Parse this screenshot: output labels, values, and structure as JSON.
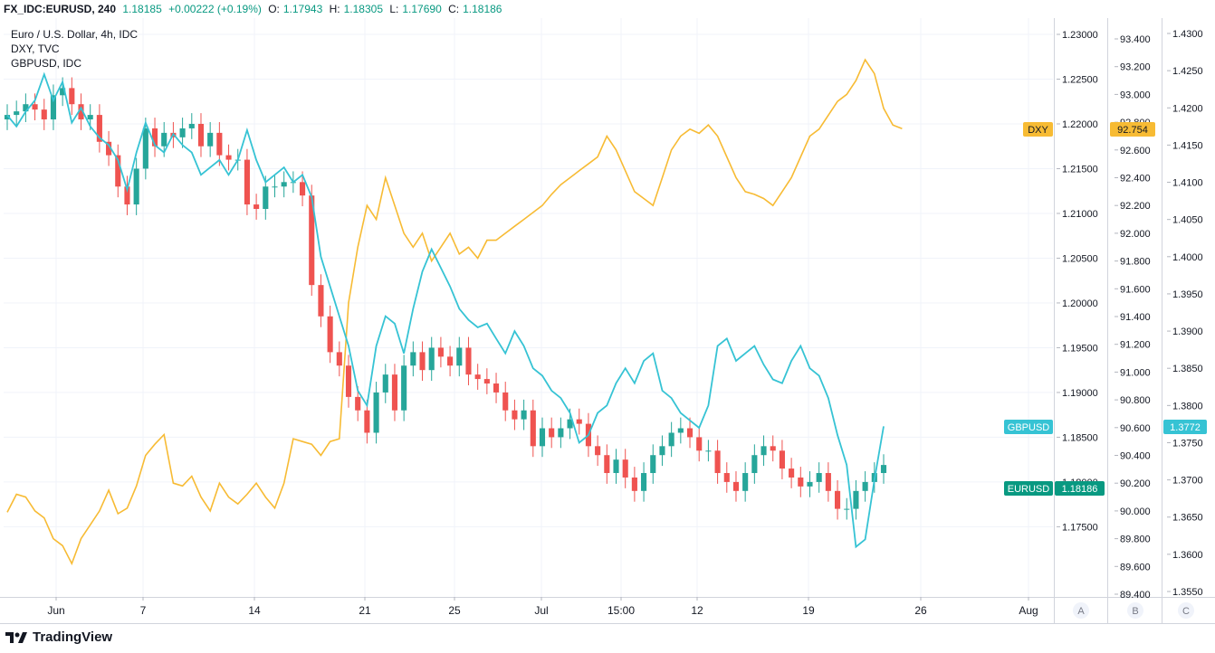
{
  "header": {
    "symbol": "FX_IDC:EURUSD, 240",
    "price": "1.18185",
    "change": "+0.00222 (+0.19%)",
    "open_label": "O:",
    "open": "1.17943",
    "high_label": "H:",
    "high": "1.18305",
    "low_label": "L:",
    "low": "1.17690",
    "close_label": "C:",
    "close": "1.18186"
  },
  "legend": {
    "series1": "Euro / U.S. Dollar, 4h, IDC",
    "series2": "DXY, TVC",
    "series3": "GBPUSD, IDC"
  },
  "brand": {
    "name": "TradingView"
  },
  "scale_buttons": [
    "A",
    "B",
    "C"
  ],
  "colors": {
    "eurusd_up": "#26a69a",
    "eurusd_down": "#ef5350",
    "dxy": "#f7bb34",
    "gbpusd": "#36c3d4",
    "eurusd_tag": "#089981"
  },
  "chart_data": {
    "type": "line",
    "x_ticks": [
      "Jun",
      "7",
      "14",
      "21",
      "25",
      "Jul",
      "15:00",
      "12",
      "19",
      "26",
      "Aug"
    ],
    "axes": {
      "eurusd": {
        "ticks": [
          "1.23000",
          "1.22500",
          "1.22000",
          "1.21500",
          "1.21000",
          "1.20500",
          "1.20000",
          "1.19500",
          "1.19000",
          "1.18500",
          "1.18000",
          "1.17500"
        ],
        "ylim": [
          1.171,
          1.23
        ]
      },
      "dxy": {
        "ticks": [
          "93.400",
          "93.200",
          "93.000",
          "92.800",
          "92.600",
          "92.400",
          "92.200",
          "92.000",
          "91.800",
          "91.600",
          "91.400",
          "91.200",
          "91.000",
          "90.800",
          "90.600",
          "90.400",
          "90.200",
          "90.000",
          "89.800",
          "89.600",
          "89.400"
        ],
        "ylim": [
          89.4,
          93.4
        ]
      },
      "gbpusd": {
        "ticks": [
          "1.4300",
          "1.4250",
          "1.4200",
          "1.4150",
          "1.4100",
          "1.4050",
          "1.4000",
          "1.3950",
          "1.3900",
          "1.3850",
          "1.3800",
          "1.3750",
          "1.3700",
          "1.3650",
          "1.3600",
          "1.3550"
        ],
        "ylim": [
          1.355,
          1.43
        ]
      }
    },
    "series": [
      {
        "name": "EURUSD",
        "kind": "close",
        "values": [
          1.221,
          1.2214,
          1.2222,
          1.2216,
          1.2205,
          1.2232,
          1.224,
          1.2222,
          1.2205,
          1.221,
          1.218,
          1.2165,
          1.213,
          1.211,
          1.215,
          1.2195,
          1.2175,
          1.219,
          1.2185,
          1.2195,
          1.22,
          1.2175,
          1.219,
          1.2165,
          1.216,
          1.216,
          1.211,
          1.2105,
          1.213,
          1.213,
          1.2135,
          1.2135,
          1.212,
          1.202,
          1.1985,
          1.1945,
          1.193,
          1.1895,
          1.188,
          1.1855,
          1.19,
          1.192,
          1.188,
          1.193,
          1.1945,
          1.1925,
          1.195,
          1.194,
          1.193,
          1.195,
          1.192,
          1.1915,
          1.191,
          1.19,
          1.188,
          1.187,
          1.188,
          1.184,
          1.186,
          1.185,
          1.186,
          1.187,
          1.1865,
          1.184,
          1.183,
          1.181,
          1.1825,
          1.1805,
          1.179,
          1.181,
          1.183,
          1.184,
          1.1855,
          1.186,
          1.185,
          1.1835,
          1.1835,
          1.181,
          1.18,
          1.179,
          1.181,
          1.183,
          1.184,
          1.1835,
          1.1815,
          1.1805,
          1.1795,
          1.18,
          1.181,
          1.179,
          1.177,
          1.177,
          1.179,
          1.18,
          1.181,
          1.1819
        ]
      },
      {
        "name": "DXY",
        "values": [
          89.99,
          90.12,
          90.1,
          90.0,
          89.95,
          89.8,
          89.75,
          89.62,
          89.8,
          89.9,
          90.0,
          90.15,
          89.98,
          90.02,
          90.18,
          90.4,
          90.48,
          90.55,
          90.2,
          90.18,
          90.25,
          90.1,
          90.0,
          90.2,
          90.1,
          90.05,
          90.12,
          90.2,
          90.1,
          90.02,
          90.2,
          90.52,
          90.5,
          90.48,
          90.4,
          90.5,
          90.52,
          91.5,
          91.9,
          92.2,
          92.1,
          92.4,
          92.2,
          92.0,
          91.9,
          92.0,
          91.8,
          91.9,
          92.0,
          91.85,
          91.9,
          91.82,
          91.95,
          91.95,
          92.0,
          92.05,
          92.1,
          92.15,
          92.2,
          92.28,
          92.35,
          92.4,
          92.45,
          92.5,
          92.55,
          92.7,
          92.6,
          92.45,
          92.3,
          92.25,
          92.2,
          92.4,
          92.6,
          92.7,
          92.75,
          92.72,
          92.78,
          92.7,
          92.55,
          92.4,
          92.3,
          92.28,
          92.25,
          92.2,
          92.3,
          92.4,
          92.55,
          92.7,
          92.75,
          92.85,
          92.95,
          93.0,
          93.1,
          93.25,
          93.15,
          92.9,
          92.78,
          92.754
        ]
      },
      {
        "name": "GBPUSD",
        "values": [
          1.419,
          1.4175,
          1.4195,
          1.421,
          1.4245,
          1.421,
          1.4235,
          1.418,
          1.42,
          1.4175,
          1.416,
          1.415,
          1.413,
          1.409,
          1.414,
          1.418,
          1.415,
          1.414,
          1.4165,
          1.415,
          1.414,
          1.411,
          1.412,
          1.413,
          1.411,
          1.413,
          1.417,
          1.413,
          1.41,
          1.411,
          1.412,
          1.41,
          1.411,
          1.408,
          1.4,
          1.396,
          1.392,
          1.388,
          1.382,
          1.38,
          1.388,
          1.392,
          1.391,
          1.387,
          1.393,
          1.398,
          1.401,
          1.3985,
          1.396,
          1.393,
          1.3915,
          1.3905,
          1.391,
          1.389,
          1.387,
          1.39,
          1.388,
          1.385,
          1.384,
          1.382,
          1.381,
          1.379,
          1.375,
          1.376,
          1.379,
          1.38,
          1.383,
          1.385,
          1.383,
          1.386,
          1.387,
          1.382,
          1.381,
          1.379,
          1.378,
          1.377,
          1.38,
          1.388,
          1.389,
          1.386,
          1.387,
          1.388,
          1.3855,
          1.3835,
          1.383,
          1.386,
          1.388,
          1.385,
          1.384,
          1.381,
          1.376,
          1.372,
          1.361,
          1.362,
          1.37,
          1.3772
        ]
      }
    ]
  },
  "price_tags": {
    "dxy_label": "DXY",
    "dxy_value": "92.754",
    "gbpusd_label": "GBPUSD",
    "gbpusd_value": "1.3772",
    "eurusd_label": "EURUSD",
    "eurusd_value": "1.18186"
  }
}
